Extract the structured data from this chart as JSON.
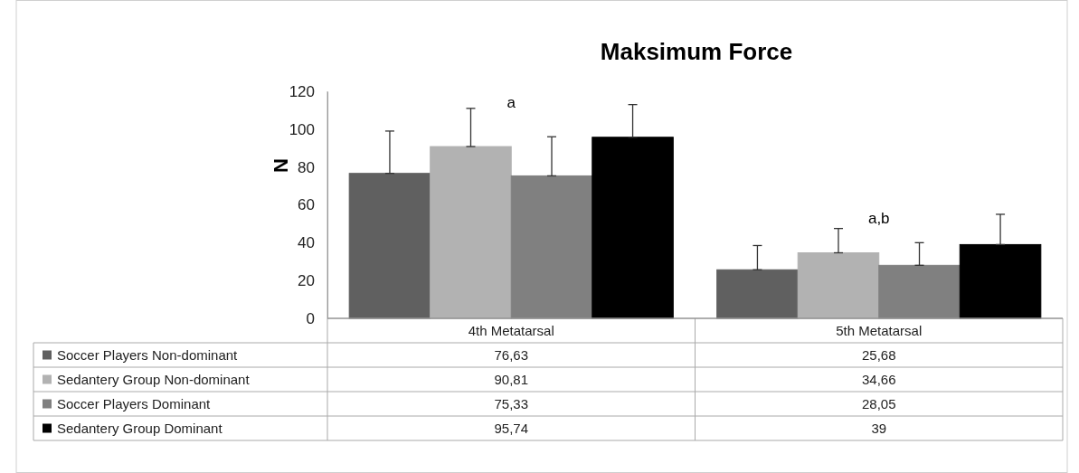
{
  "chart_data": {
    "type": "bar",
    "title": "Maksimum Force",
    "ylabel": "N",
    "categories": [
      "4th Metatarsal",
      "5th Metatarsal"
    ],
    "series": [
      {
        "name": "Soccer Players Non-dominant",
        "color": "#606060",
        "values": [
          76.63,
          25.68
        ],
        "value_labels": [
          "76,63",
          "25,68"
        ],
        "errors": [
          [
            76.63,
            99
          ],
          [
            25.68,
            38.5
          ]
        ]
      },
      {
        "name": "Sedantery Group Non-dominant",
        "color": "#b2b2b2",
        "values": [
          90.81,
          34.66
        ],
        "value_labels": [
          "90,81",
          "34,66"
        ],
        "errors": [
          [
            90.81,
            111
          ],
          [
            34.66,
            47.5
          ]
        ]
      },
      {
        "name": "Soccer Players  Dominant",
        "color": "#808080",
        "values": [
          75.33,
          28.05
        ],
        "value_labels": [
          "75,33",
          "28,05"
        ],
        "errors": [
          [
            75.33,
            96
          ],
          [
            28.05,
            40
          ]
        ]
      },
      {
        "name": "Sedantery Group Dominant",
        "color": "#000000",
        "values": [
          95.74,
          39
        ],
        "value_labels": [
          "95,74",
          "39"
        ],
        "errors": [
          [
            95.74,
            113
          ],
          [
            39,
            55
          ]
        ]
      }
    ],
    "ylim": [
      0,
      120
    ],
    "yticks": [
      0,
      20,
      40,
      60,
      80,
      100,
      120
    ],
    "grid": false,
    "legend": "bottom",
    "annotations": [
      "a",
      "a,b"
    ]
  }
}
